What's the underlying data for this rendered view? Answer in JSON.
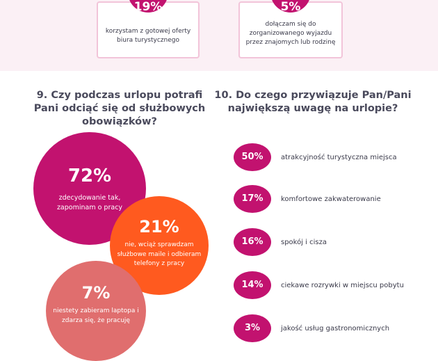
{
  "top_cards": [
    {
      "percent": "19%",
      "text": "korzystam z gotowej oferty biura turystycznego"
    },
    {
      "percent": "5%",
      "text": "dołączam się do zorganizowanego wyjazdu przez znajomych lub rodzinę"
    }
  ],
  "q9": {
    "title": "9. Czy podczas urlopu potrafi Pani odciąć się od służbowych obowiązków?",
    "answers": [
      {
        "percent": "72%",
        "text": "zdecydowanie tak, zapominam o pracy"
      },
      {
        "percent": "21%",
        "text": "nie, wciąż sprawdzam służbowe maile i odbieram telefony z pracy"
      },
      {
        "percent": "7%",
        "text": "niestety zabieram laptopa i zdarza się, że pracuję"
      }
    ]
  },
  "q10": {
    "title": "10. Do czego przywiązuje Pan/Pani największą uwagę na urlopie?",
    "answers": [
      {
        "percent": "50%",
        "text": "atrakcyjność turystyczna miejsca"
      },
      {
        "percent": "17%",
        "text": "komfortowe zakwaterowanie"
      },
      {
        "percent": "16%",
        "text": "spokój i cisza"
      },
      {
        "percent": "14%",
        "text": "ciekawe rozrywki w miejscu pobytu"
      },
      {
        "percent": "3%",
        "text": "jakość usług gastronomicznych"
      }
    ]
  },
  "colors": {
    "magenta": "#c2126f",
    "orange": "#ff5a1f",
    "salmon": "#e06e6e",
    "pink_band": "#fbf0f5",
    "card_border": "#f2c4d9"
  }
}
